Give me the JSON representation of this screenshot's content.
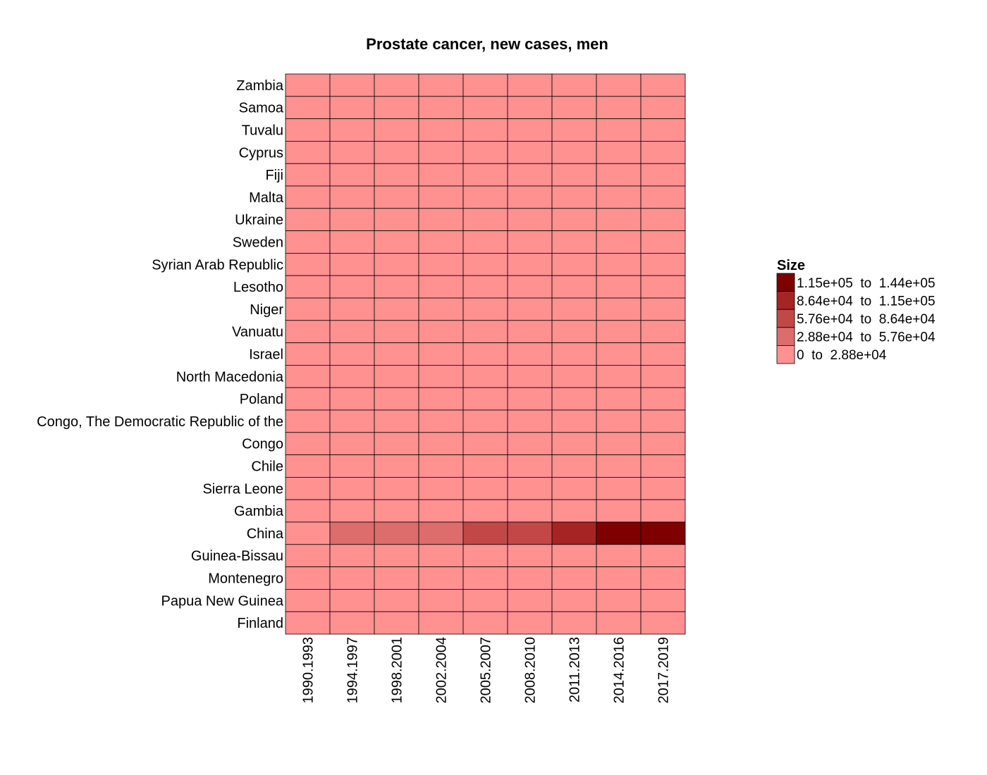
{
  "chart_data": {
    "type": "heatmap",
    "title": "Prostate cancer, new cases, men",
    "xlabel": "",
    "ylabel": "",
    "x": [
      "1990.1993",
      "1994.1997",
      "1998.2001",
      "2002.2004",
      "2005.2007",
      "2008.2010",
      "2011.2013",
      "2014.2016",
      "2017.2019"
    ],
    "y": [
      "Zambia",
      "Samoa",
      "Tuvalu",
      "Cyprus",
      "Fiji",
      "Malta",
      "Ukraine",
      "Sweden",
      "Syrian Arab Republic",
      "Lesotho",
      "Niger",
      "Vanuatu",
      "Israel",
      "North Macedonia",
      "Poland",
      "Congo, The Democratic Republic of the",
      "Congo",
      "Chile",
      "Sierra Leone",
      "Gambia",
      "China",
      "Guinea-Bissau",
      "Montenegro",
      "Papua New Guinea",
      "Finland"
    ],
    "bins": [
      {
        "label": "1.15e+05  to  1.44e+05",
        "color": "#7f0000"
      },
      {
        "label": "8.64e+04  to  1.15e+05",
        "color": "#a52424"
      },
      {
        "label": "5.76e+04  to  8.64e+04",
        "color": "#c24848"
      },
      {
        "label": "2.88e+04  to  5.76e+04",
        "color": "#dd6c6c"
      },
      {
        "label": "0  to  2.88e+04",
        "color": "#ff9191"
      }
    ],
    "bin_index": [
      [
        4,
        4,
        4,
        4,
        4,
        4,
        4,
        4,
        4
      ],
      [
        4,
        4,
        4,
        4,
        4,
        4,
        4,
        4,
        4
      ],
      [
        4,
        4,
        4,
        4,
        4,
        4,
        4,
        4,
        4
      ],
      [
        4,
        4,
        4,
        4,
        4,
        4,
        4,
        4,
        4
      ],
      [
        4,
        4,
        4,
        4,
        4,
        4,
        4,
        4,
        4
      ],
      [
        4,
        4,
        4,
        4,
        4,
        4,
        4,
        4,
        4
      ],
      [
        4,
        4,
        4,
        4,
        4,
        4,
        4,
        4,
        4
      ],
      [
        4,
        4,
        4,
        4,
        4,
        4,
        4,
        4,
        4
      ],
      [
        4,
        4,
        4,
        4,
        4,
        4,
        4,
        4,
        4
      ],
      [
        4,
        4,
        4,
        4,
        4,
        4,
        4,
        4,
        4
      ],
      [
        4,
        4,
        4,
        4,
        4,
        4,
        4,
        4,
        4
      ],
      [
        4,
        4,
        4,
        4,
        4,
        4,
        4,
        4,
        4
      ],
      [
        4,
        4,
        4,
        4,
        4,
        4,
        4,
        4,
        4
      ],
      [
        4,
        4,
        4,
        4,
        4,
        4,
        4,
        4,
        4
      ],
      [
        4,
        4,
        4,
        4,
        4,
        4,
        4,
        4,
        4
      ],
      [
        4,
        4,
        4,
        4,
        4,
        4,
        4,
        4,
        4
      ],
      [
        4,
        4,
        4,
        4,
        4,
        4,
        4,
        4,
        4
      ],
      [
        4,
        4,
        4,
        4,
        4,
        4,
        4,
        4,
        4
      ],
      [
        4,
        4,
        4,
        4,
        4,
        4,
        4,
        4,
        4
      ],
      [
        4,
        4,
        4,
        4,
        4,
        4,
        4,
        4,
        4
      ],
      [
        4,
        3,
        3,
        3,
        2,
        2,
        1,
        0,
        0
      ],
      [
        4,
        4,
        4,
        4,
        4,
        4,
        4,
        4,
        4
      ],
      [
        4,
        4,
        4,
        4,
        4,
        4,
        4,
        4,
        4
      ],
      [
        4,
        4,
        4,
        4,
        4,
        4,
        4,
        4,
        4
      ],
      [
        4,
        4,
        4,
        4,
        4,
        4,
        4,
        4,
        4
      ]
    ],
    "legend": {
      "title": "Size",
      "position": "right"
    },
    "grid": false
  }
}
